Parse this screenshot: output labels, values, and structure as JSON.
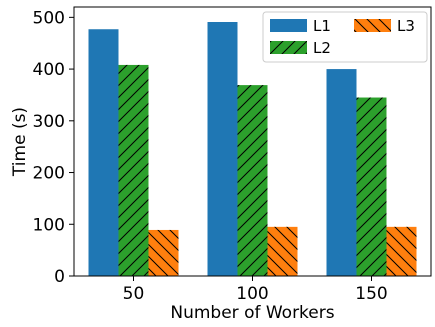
{
  "chart_data": {
    "type": "bar",
    "title": "",
    "xlabel": "Number of Workers",
    "ylabel": "Time (s)",
    "categories": [
      "50",
      "100",
      "150"
    ],
    "ylim": [
      0,
      520
    ],
    "yticks": [
      0,
      100,
      200,
      300,
      400,
      500
    ],
    "grid": false,
    "legend_position": "top-right",
    "series": [
      {
        "name": "L1",
        "values": [
          477,
          491,
          400
        ],
        "color": "#1f77b4",
        "hatch": "none"
      },
      {
        "name": "L2",
        "values": [
          408,
          369,
          345
        ],
        "color": "#2ca02c",
        "hatch": "forward-slash"
      },
      {
        "name": "L3",
        "values": [
          89,
          95,
          95
        ],
        "color": "#ff7f0e",
        "hatch": "back-slash"
      }
    ]
  }
}
